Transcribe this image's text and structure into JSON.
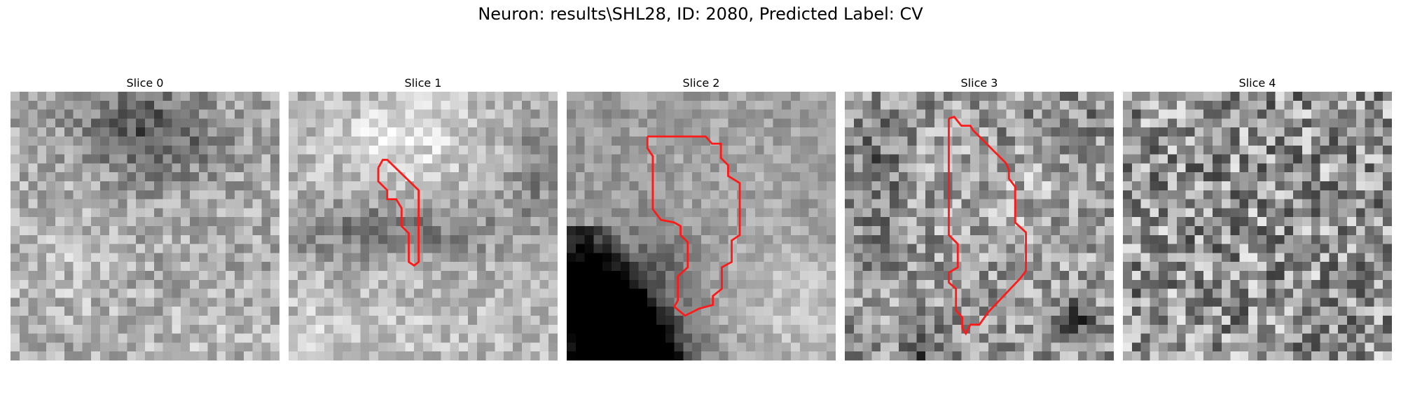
{
  "figure": {
    "title": "Neuron: results\\SHL28, ID: 2080, Predicted Label: CV",
    "outline_color": "#ff1a1a"
  },
  "panels": [
    {
      "title": "Slice 0"
    },
    {
      "title": "Slice 1"
    },
    {
      "title": "Slice 2"
    },
    {
      "title": "Slice 3"
    },
    {
      "title": "Slice 4"
    }
  ]
}
